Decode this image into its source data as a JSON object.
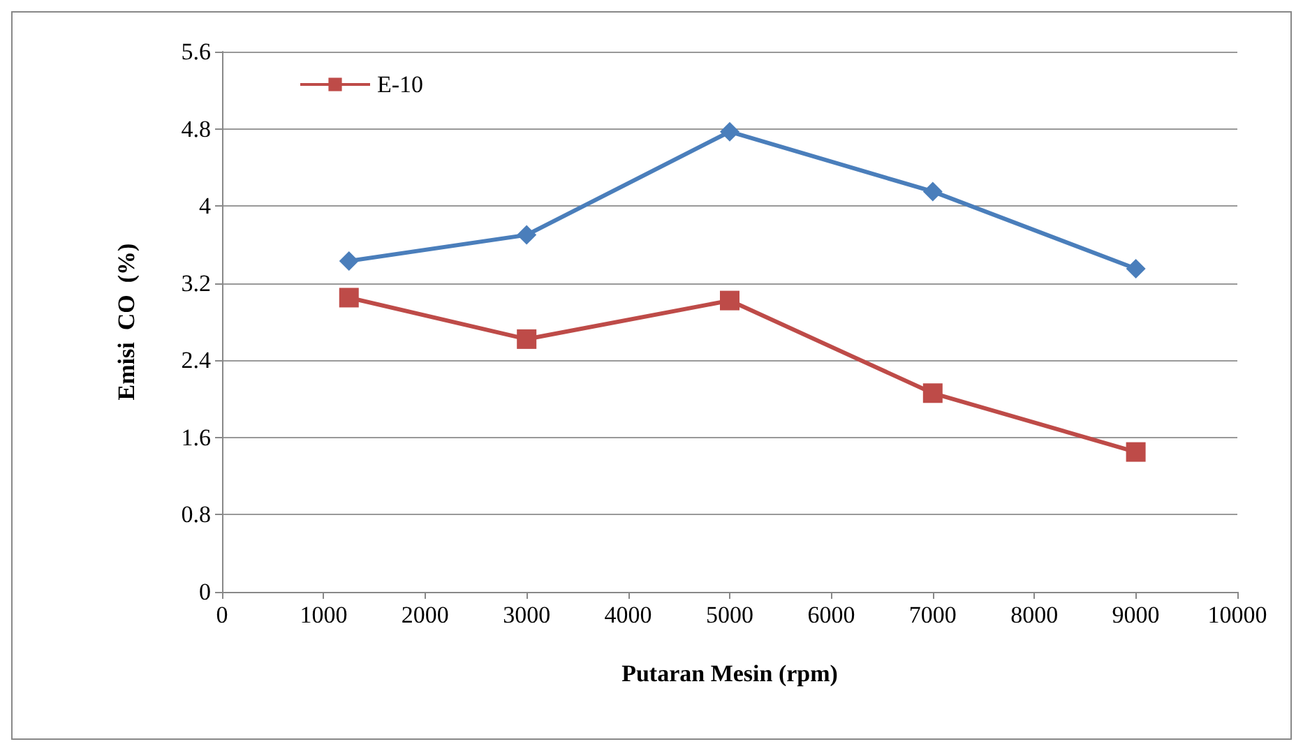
{
  "chart_data": {
    "type": "line",
    "xlabel": "Putaran Mesin (rpm)",
    "ylabel": "Emisi  CO  (%)",
    "x": [
      1250,
      3000,
      5000,
      7000,
      9000
    ],
    "series": [
      {
        "color": "#4a7ebb",
        "values": [
          3.43,
          3.7,
          4.77,
          4.15,
          3.35
        ],
        "marker": "diamond"
      },
      {
        "name": "E-10",
        "color": "#be4b48",
        "values": [
          3.05,
          2.62,
          3.02,
          2.06,
          1.45
        ],
        "marker": "square"
      }
    ],
    "xlim": [
      0,
      10000
    ],
    "xticks": [
      0,
      1000,
      2000,
      3000,
      4000,
      5000,
      6000,
      7000,
      8000,
      9000,
      10000
    ],
    "ylim": [
      0,
      5.6
    ],
    "yticks": [
      0,
      0.8,
      1.6,
      2.4,
      3.2,
      4,
      4.8,
      5.6
    ],
    "grid": "y",
    "legend": "top left",
    "line_style": "solid"
  }
}
